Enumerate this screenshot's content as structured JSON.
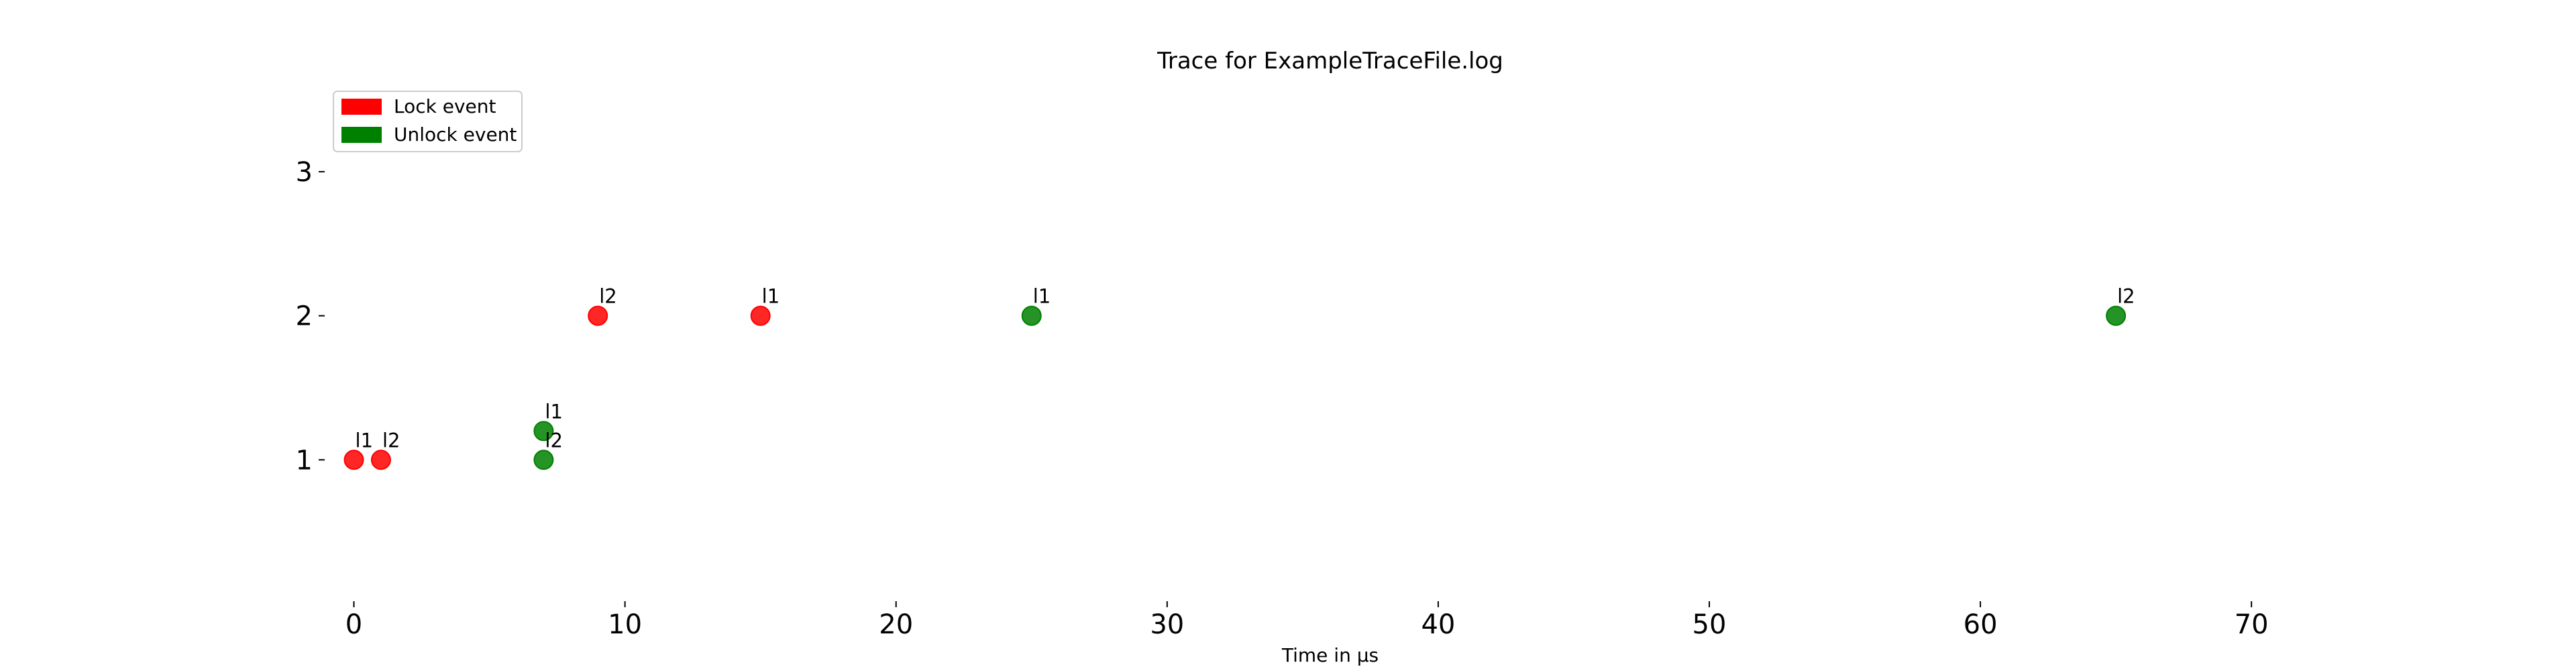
{
  "chart_data": {
    "type": "scatter",
    "title": "Trace for ExampleTraceFile.log",
    "xlabel": "Time in µs",
    "ylabel": "",
    "xlim": [
      -1.3,
      72
    ],
    "ylim": [
      0,
      3.4
    ],
    "x_ticks": [
      0,
      10,
      20,
      30,
      40,
      50,
      60,
      70
    ],
    "y_ticks": [
      1,
      2,
      3
    ],
    "grid": false,
    "legend_position": "top-left",
    "series": [
      {
        "name": "Lock event",
        "color": "#ff0000",
        "points": [
          {
            "x": 0,
            "y": 1,
            "label": "l1"
          },
          {
            "x": 1,
            "y": 1,
            "label": "l2"
          },
          {
            "x": 9,
            "y": 2,
            "label": "l2"
          },
          {
            "x": 15,
            "y": 2,
            "label": "l1"
          }
        ]
      },
      {
        "name": "Unlock event",
        "color": "#008000",
        "points": [
          {
            "x": 7,
            "y": 1.2,
            "label": "l1"
          },
          {
            "x": 7,
            "y": 1,
            "label": "l2"
          },
          {
            "x": 25,
            "y": 2,
            "label": "l1"
          },
          {
            "x": 65,
            "y": 2,
            "label": "l2"
          }
        ]
      }
    ]
  }
}
